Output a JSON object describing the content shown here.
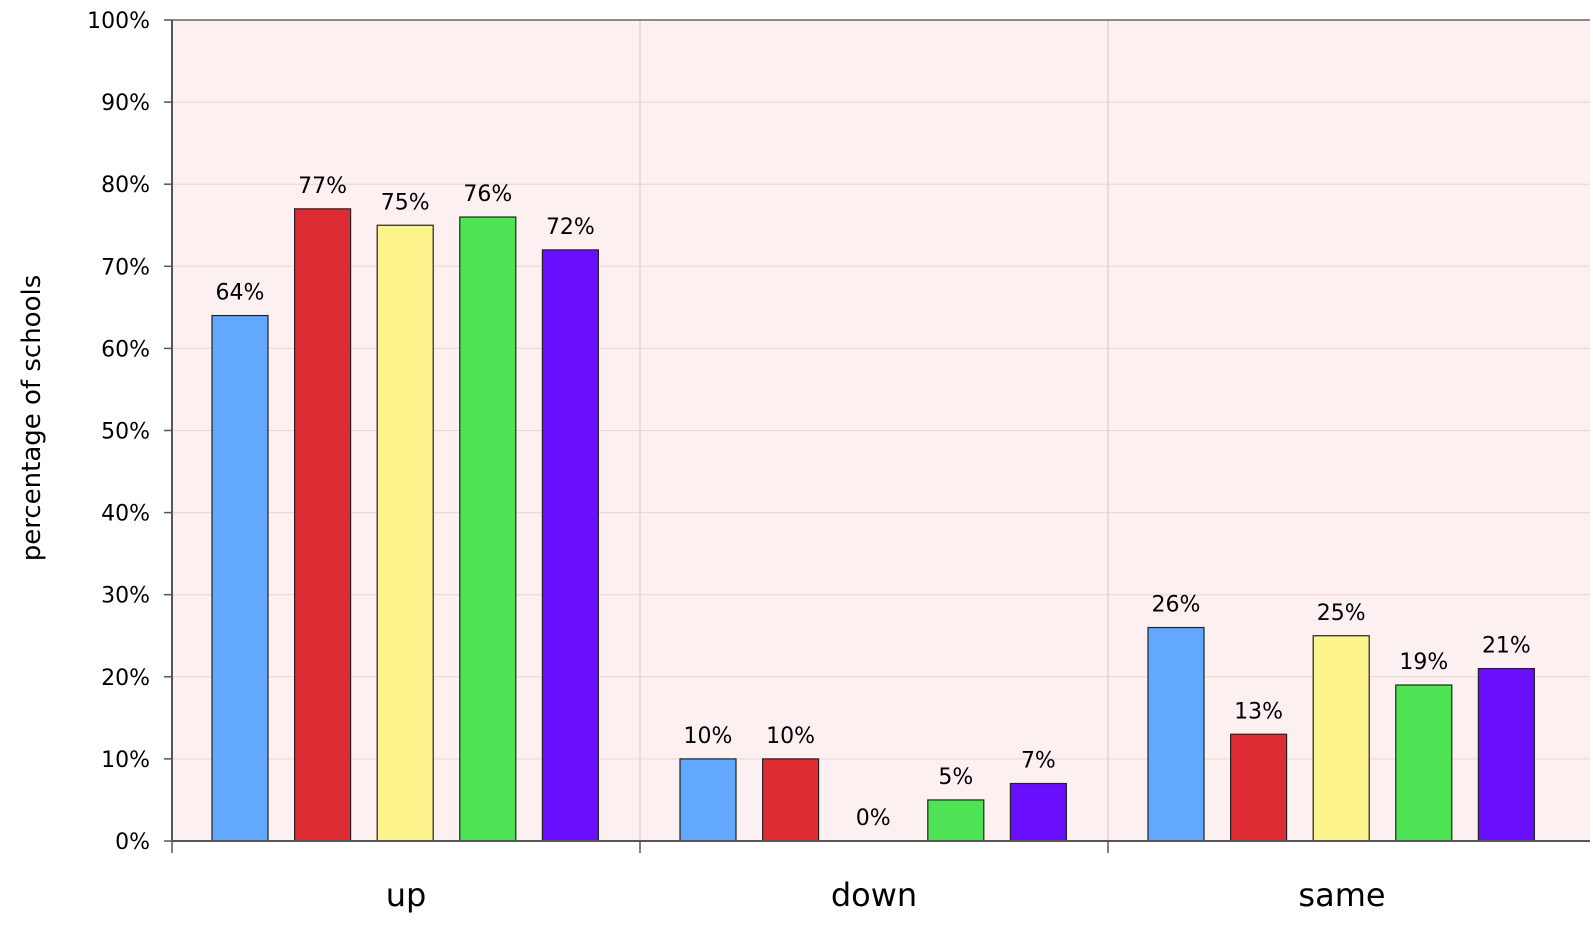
{
  "chart_data": {
    "type": "bar",
    "title": "",
    "xlabel": "",
    "ylabel": "percentage of schools",
    "ylim": [
      0,
      100
    ],
    "y_ticks": [
      "0%",
      "10%",
      "20%",
      "30%",
      "40%",
      "50%",
      "60%",
      "70%",
      "80%",
      "90%",
      "100%"
    ],
    "y_tick_values": [
      0,
      10,
      20,
      30,
      40,
      50,
      60,
      70,
      80,
      90,
      100
    ],
    "categories": [
      "up",
      "down",
      "same"
    ],
    "grid": true,
    "legend": "none",
    "plot_background": "#fcf0f0",
    "series": [
      {
        "color": "#62a8fe",
        "values": [
          64,
          10,
          26
        ],
        "labels": [
          "64%",
          "10%",
          "26%"
        ]
      },
      {
        "color": "#dd2c33",
        "values": [
          77,
          10,
          13
        ],
        "labels": [
          "77%",
          "10%",
          "13%"
        ]
      },
      {
        "color": "#fef48e",
        "values": [
          75,
          0,
          25
        ],
        "labels": [
          "75%",
          "0%",
          "25%"
        ]
      },
      {
        "color": "#4ee455",
        "values": [
          76,
          5,
          19
        ],
        "labels": [
          "76%",
          "5%",
          "19%"
        ]
      },
      {
        "color": "#6a0ffd",
        "values": [
          72,
          7,
          21
        ],
        "labels": [
          "72%",
          "7%",
          "21%"
        ]
      }
    ]
  }
}
